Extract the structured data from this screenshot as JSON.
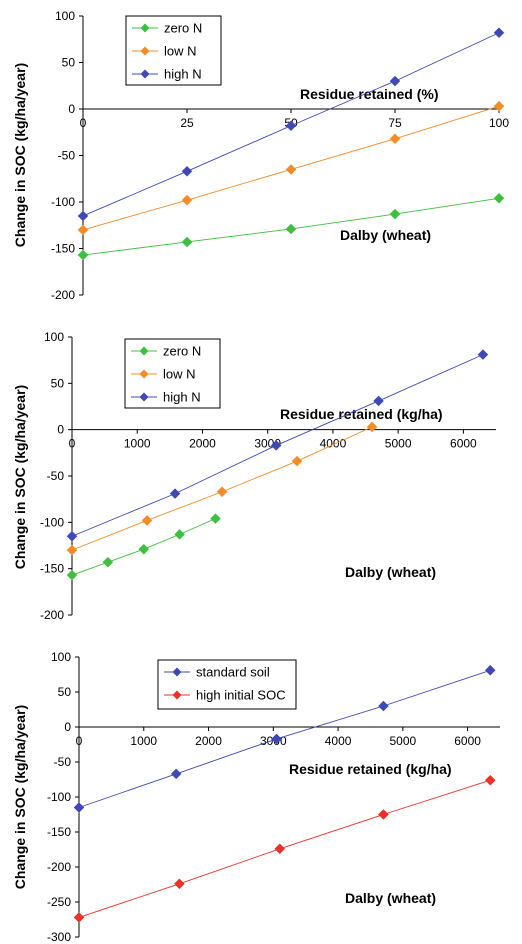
{
  "chart_data": [
    {
      "type": "line",
      "title": "",
      "xlabel": "Residue retained (%)",
      "ylabel": "Change in SOC (kg/ha/year)",
      "annotation": "Dalby (wheat)",
      "xlim": [
        0,
        100
      ],
      "ylim": [
        -200,
        100
      ],
      "xticks": [
        0,
        25,
        50,
        75,
        100
      ],
      "yticks": [
        100,
        50,
        0,
        -50,
        -100,
        -150,
        -200
      ],
      "legend_position": "top-left",
      "series": [
        {
          "name": "zero N",
          "color": "#3fbf3f",
          "x": [
            0,
            25,
            50,
            75,
            100
          ],
          "y": [
            -157,
            -143,
            -129,
            -113,
            -96
          ]
        },
        {
          "name": "low N",
          "color": "#f28c28",
          "x": [
            0,
            25,
            50,
            75,
            100
          ],
          "y": [
            -130,
            -98,
            -65,
            -32,
            3
          ]
        },
        {
          "name": "high N",
          "color": "#3f48b5",
          "x": [
            0,
            25,
            50,
            75,
            100
          ],
          "y": [
            -115,
            -67,
            -18,
            30,
            82
          ]
        }
      ]
    },
    {
      "type": "line",
      "title": "",
      "xlabel": "Residue retained (kg/ha)",
      "ylabel": "Change in SOC (kg/ha/year)",
      "annotation": "Dalby (wheat)",
      "xlim": [
        0,
        6500
      ],
      "ylim": [
        -200,
        100
      ],
      "xticks": [
        0,
        1000,
        2000,
        3000,
        4000,
        5000,
        6000
      ],
      "yticks": [
        100,
        50,
        0,
        -50,
        -100,
        -150,
        -200
      ],
      "legend_position": "top-left",
      "series": [
        {
          "name": "zero N",
          "color": "#3fbf3f",
          "x": [
            0,
            550,
            1100,
            1650,
            2200
          ],
          "y": [
            -157,
            -143,
            -129,
            -113,
            -96
          ]
        },
        {
          "name": "low N",
          "color": "#f28c28",
          "x": [
            0,
            1150,
            2300,
            3450,
            4600
          ],
          "y": [
            -130,
            -98,
            -67,
            -34,
            3
          ]
        },
        {
          "name": "high N",
          "color": "#3f48b5",
          "x": [
            0,
            1580,
            3130,
            4700,
            6300
          ],
          "y": [
            -115,
            -69,
            -17,
            31,
            81
          ]
        }
      ]
    },
    {
      "type": "line",
      "title": "",
      "xlabel": "Residue retained (kg/ha)",
      "ylabel": "Change in SOC (kg/ha/year)",
      "annotation": "Dalby (wheat)",
      "xlim": [
        0,
        6500
      ],
      "ylim": [
        -300,
        100
      ],
      "xticks": [
        0,
        1000,
        2000,
        3000,
        4000,
        5000,
        6000
      ],
      "yticks": [
        100,
        50,
        0,
        -50,
        -100,
        -150,
        -200,
        -250,
        -300
      ],
      "legend_position": "top-left",
      "series": [
        {
          "name": "standard soil",
          "color": "#3f48b5",
          "x": [
            0,
            1500,
            3050,
            4700,
            6350
          ],
          "y": [
            -115,
            -67,
            -17,
            30,
            81
          ]
        },
        {
          "name": "high initial SOC",
          "color": "#e8322a",
          "x": [
            0,
            1550,
            3100,
            4700,
            6350
          ],
          "y": [
            -272,
            -224,
            -174,
            -125,
            -76
          ]
        }
      ]
    }
  ]
}
